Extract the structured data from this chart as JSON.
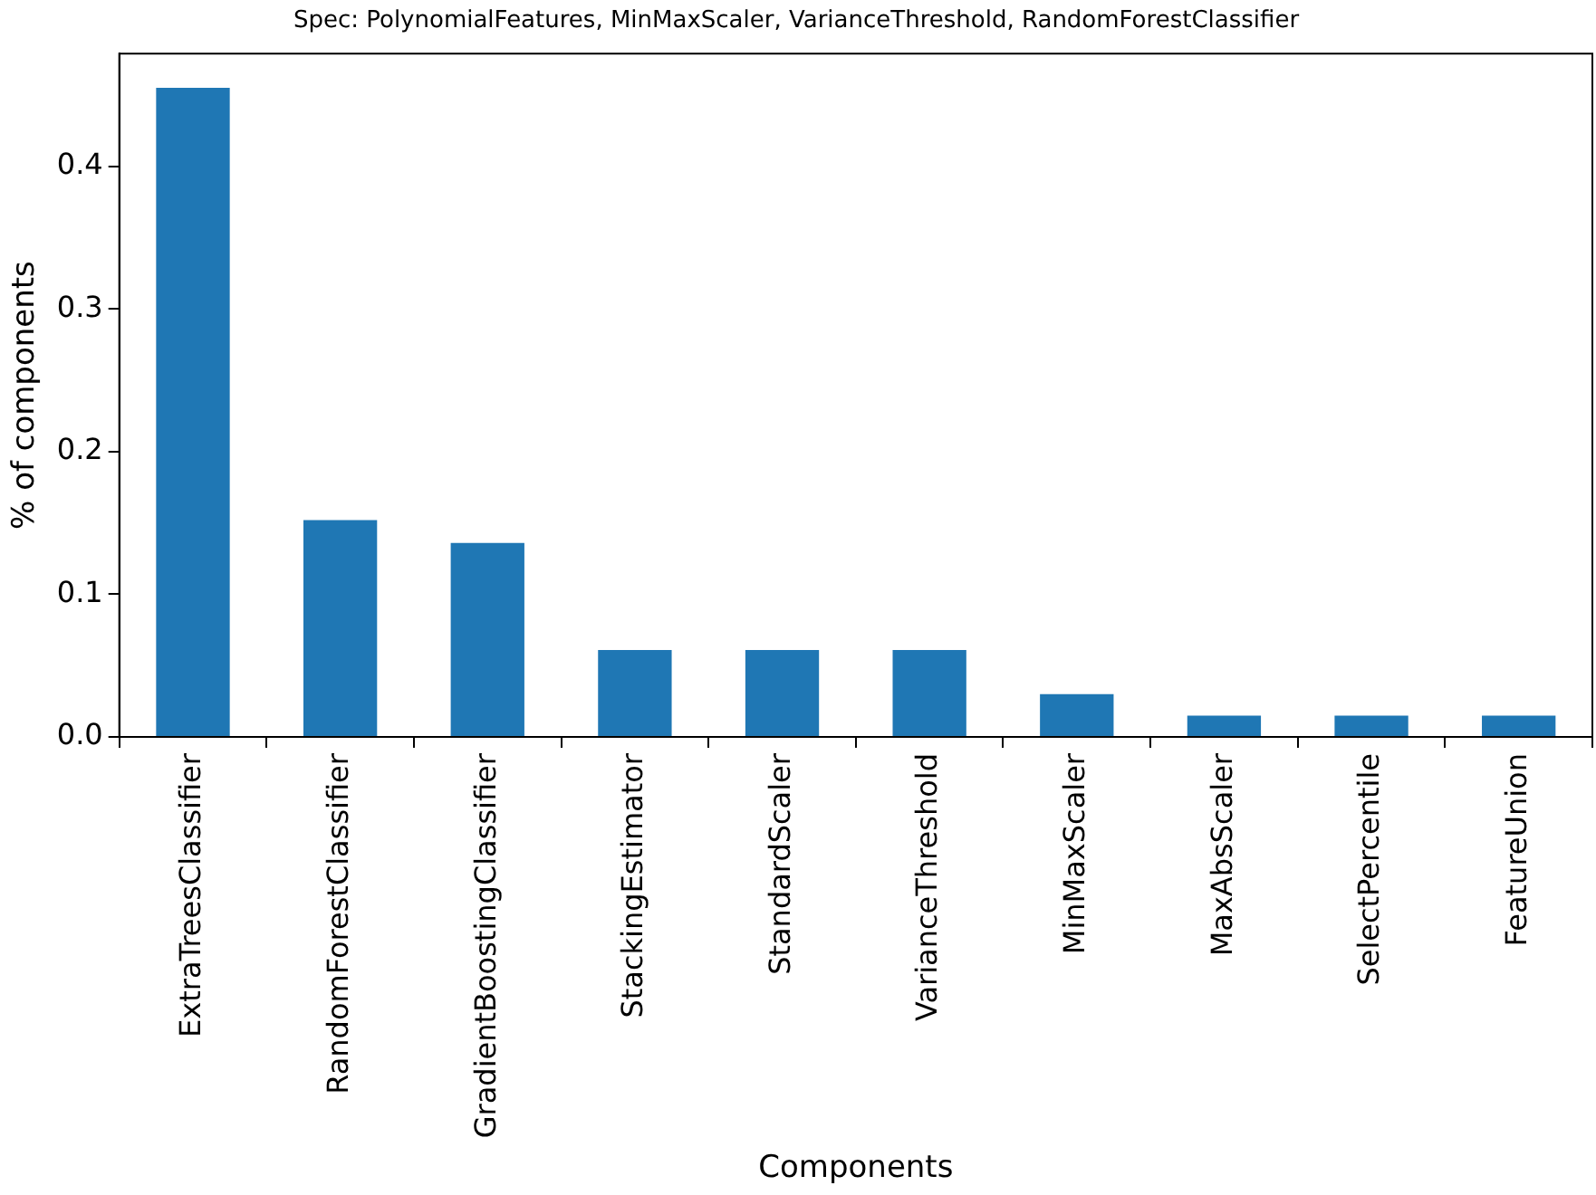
{
  "chart_data": {
    "type": "bar",
    "title": "Spec: PolynomialFeatures, MinMaxScaler, VarianceThreshold, RandomForestClassifier",
    "xlabel": "Components",
    "ylabel": "% of components",
    "categories": [
      "ExtraTreesClassifier",
      "RandomForestClassifier",
      "GradientBoostingClassifier",
      "StackingEstimator",
      "StandardScaler",
      "VarianceThreshold",
      "MinMaxScaler",
      "MaxAbsScaler",
      "SelectPercentile",
      "FeatureUnion"
    ],
    "values": [
      0.455,
      0.152,
      0.136,
      0.061,
      0.061,
      0.061,
      0.03,
      0.015,
      0.015,
      0.015
    ],
    "color": "#1f77b4",
    "ylim": [
      0,
      0.479
    ],
    "yticks": [
      {
        "value": 0,
        "label": "0.0"
      },
      {
        "value": 0.1,
        "label": "0.1"
      },
      {
        "value": 0.2,
        "label": "0.2"
      },
      {
        "value": 0.3,
        "label": "0.3"
      },
      {
        "value": 0.4,
        "label": "0.4"
      }
    ],
    "grid": false,
    "legend": false
  }
}
